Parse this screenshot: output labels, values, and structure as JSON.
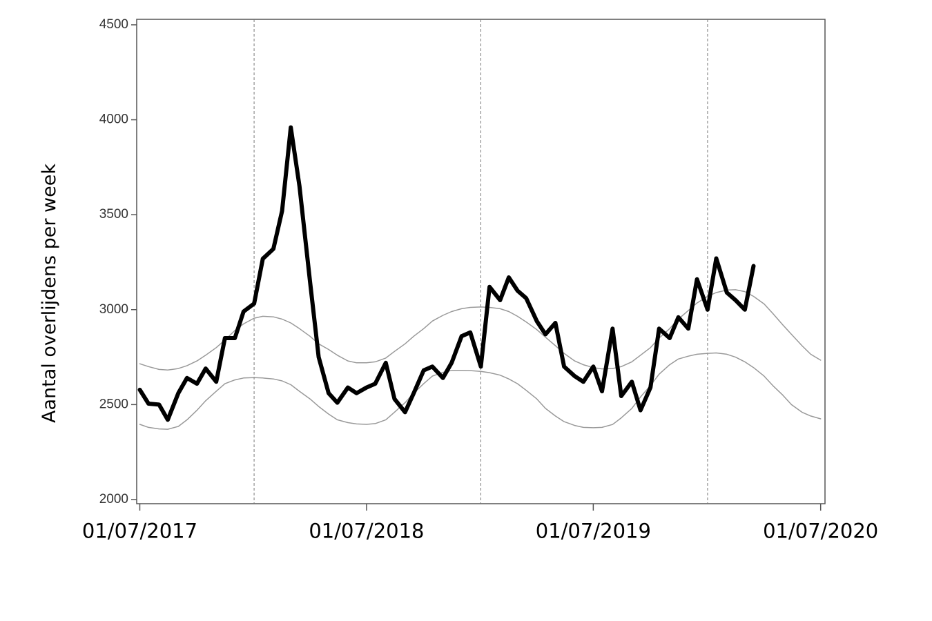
{
  "chart_data": {
    "type": "line",
    "y_label": "Aantal overlijdens per week",
    "xlim": [
      "26/06/2017",
      "08/07/2020"
    ],
    "xticks": [
      "01/07/2017",
      "01/07/2018",
      "01/07/2019",
      "01/07/2020"
    ],
    "ylim": [
      1978,
      4529
    ],
    "yticks": [
      2000,
      2500,
      3000,
      3500,
      4000,
      4500
    ],
    "grid": false,
    "vlines": [
      "01/01/2018",
      "01/01/2019",
      "01/01/2020"
    ],
    "x": [
      "01/07/2017",
      "15/07/2017",
      "01/08/2017",
      "15/08/2017",
      "01/09/2017",
      "15/09/2017",
      "01/10/2017",
      "15/10/2017",
      "01/11/2017",
      "15/11/2017",
      "01/12/2017",
      "15/12/2017",
      "01/01/2018",
      "15/01/2018",
      "01/02/2018",
      "15/02/2018",
      "01/03/2018",
      "15/03/2018",
      "01/04/2018",
      "15/04/2018",
      "01/05/2018",
      "15/05/2018",
      "01/06/2018",
      "15/06/2018",
      "01/07/2018",
      "15/07/2018",
      "01/08/2018",
      "15/08/2018",
      "01/09/2018",
      "15/09/2018",
      "01/10/2018",
      "15/10/2018",
      "01/11/2018",
      "15/11/2018",
      "01/12/2018",
      "15/12/2018",
      "01/01/2019",
      "15/01/2019",
      "01/02/2019",
      "15/02/2019",
      "01/03/2019",
      "15/03/2019",
      "01/04/2019",
      "15/04/2019",
      "01/05/2019",
      "15/05/2019",
      "01/06/2019",
      "15/06/2019",
      "01/07/2019",
      "15/07/2019",
      "01/08/2019",
      "15/08/2019",
      "01/09/2019",
      "15/09/2019",
      "01/10/2019",
      "15/10/2019",
      "01/11/2019",
      "15/11/2019",
      "01/12/2019",
      "15/12/2019",
      "01/01/2020",
      "15/01/2020",
      "01/02/2020",
      "15/02/2020",
      "01/03/2020",
      "15/03/2020",
      "01/04/2020",
      "15/04/2020",
      "01/05/2020",
      "15/05/2020",
      "01/06/2020",
      "15/06/2020",
      "01/07/2020"
    ],
    "series": [
      {
        "color": "#999999",
        "width": 1.5,
        "values": [
          2715,
          2700,
          2685,
          2682,
          2690,
          2705,
          2730,
          2760,
          2800,
          2840,
          2890,
          2925,
          2955,
          2965,
          2962,
          2950,
          2930,
          2900,
          2860,
          2820,
          2790,
          2760,
          2730,
          2720,
          2720,
          2725,
          2745,
          2780,
          2820,
          2860,
          2900,
          2940,
          2970,
          2990,
          3005,
          3012,
          3014,
          3012,
          3005,
          2990,
          2965,
          2935,
          2895,
          2855,
          2810,
          2770,
          2730,
          2710,
          2695,
          2688,
          2690,
          2700,
          2725,
          2760,
          2800,
          2850,
          2900,
          2950,
          2995,
          3035,
          3070,
          3090,
          3103,
          3105,
          3095,
          3070,
          3030,
          2980,
          2920,
          2870,
          2810,
          2765,
          2734
        ]
      },
      {
        "color": "#999999",
        "width": 1.5,
        "values": [
          2396,
          2380,
          2372,
          2370,
          2385,
          2420,
          2470,
          2520,
          2570,
          2610,
          2630,
          2640,
          2642,
          2640,
          2635,
          2625,
          2605,
          2570,
          2530,
          2490,
          2450,
          2420,
          2405,
          2398,
          2396,
          2400,
          2420,
          2460,
          2510,
          2560,
          2610,
          2650,
          2670,
          2680,
          2680,
          2679,
          2675,
          2668,
          2655,
          2635,
          2610,
          2575,
          2530,
          2480,
          2440,
          2410,
          2390,
          2380,
          2378,
          2380,
          2395,
          2430,
          2480,
          2540,
          2600,
          2660,
          2710,
          2740,
          2755,
          2765,
          2770,
          2772,
          2765,
          2750,
          2725,
          2695,
          2650,
          2600,
          2550,
          2500,
          2460,
          2440,
          2425
        ]
      },
      {
        "color": "#000000",
        "width": 6,
        "values": [
          2578,
          2505,
          2500,
          2420,
          2560,
          2640,
          2610,
          2690,
          2620,
          2850,
          2850,
          2990,
          3032,
          3268,
          3320,
          3520,
          3960,
          3650,
          3150,
          2750,
          2560,
          2510,
          2590,
          2560,
          2590,
          2610,
          2720,
          2530,
          2460,
          2560,
          2680,
          2700,
          2640,
          2720,
          2860,
          2880,
          2700,
          3120,
          3050,
          3170,
          3100,
          3060,
          2940,
          2870,
          2930,
          2700,
          2650,
          2620,
          2700,
          2570,
          2900,
          2545,
          2620,
          2470,
          2590,
          2900,
          2850,
          2960,
          2900,
          3160,
          3000,
          3270,
          3090,
          3050,
          3000,
          3230,
          null,
          null,
          null,
          null,
          null,
          null,
          null
        ]
      }
    ]
  }
}
